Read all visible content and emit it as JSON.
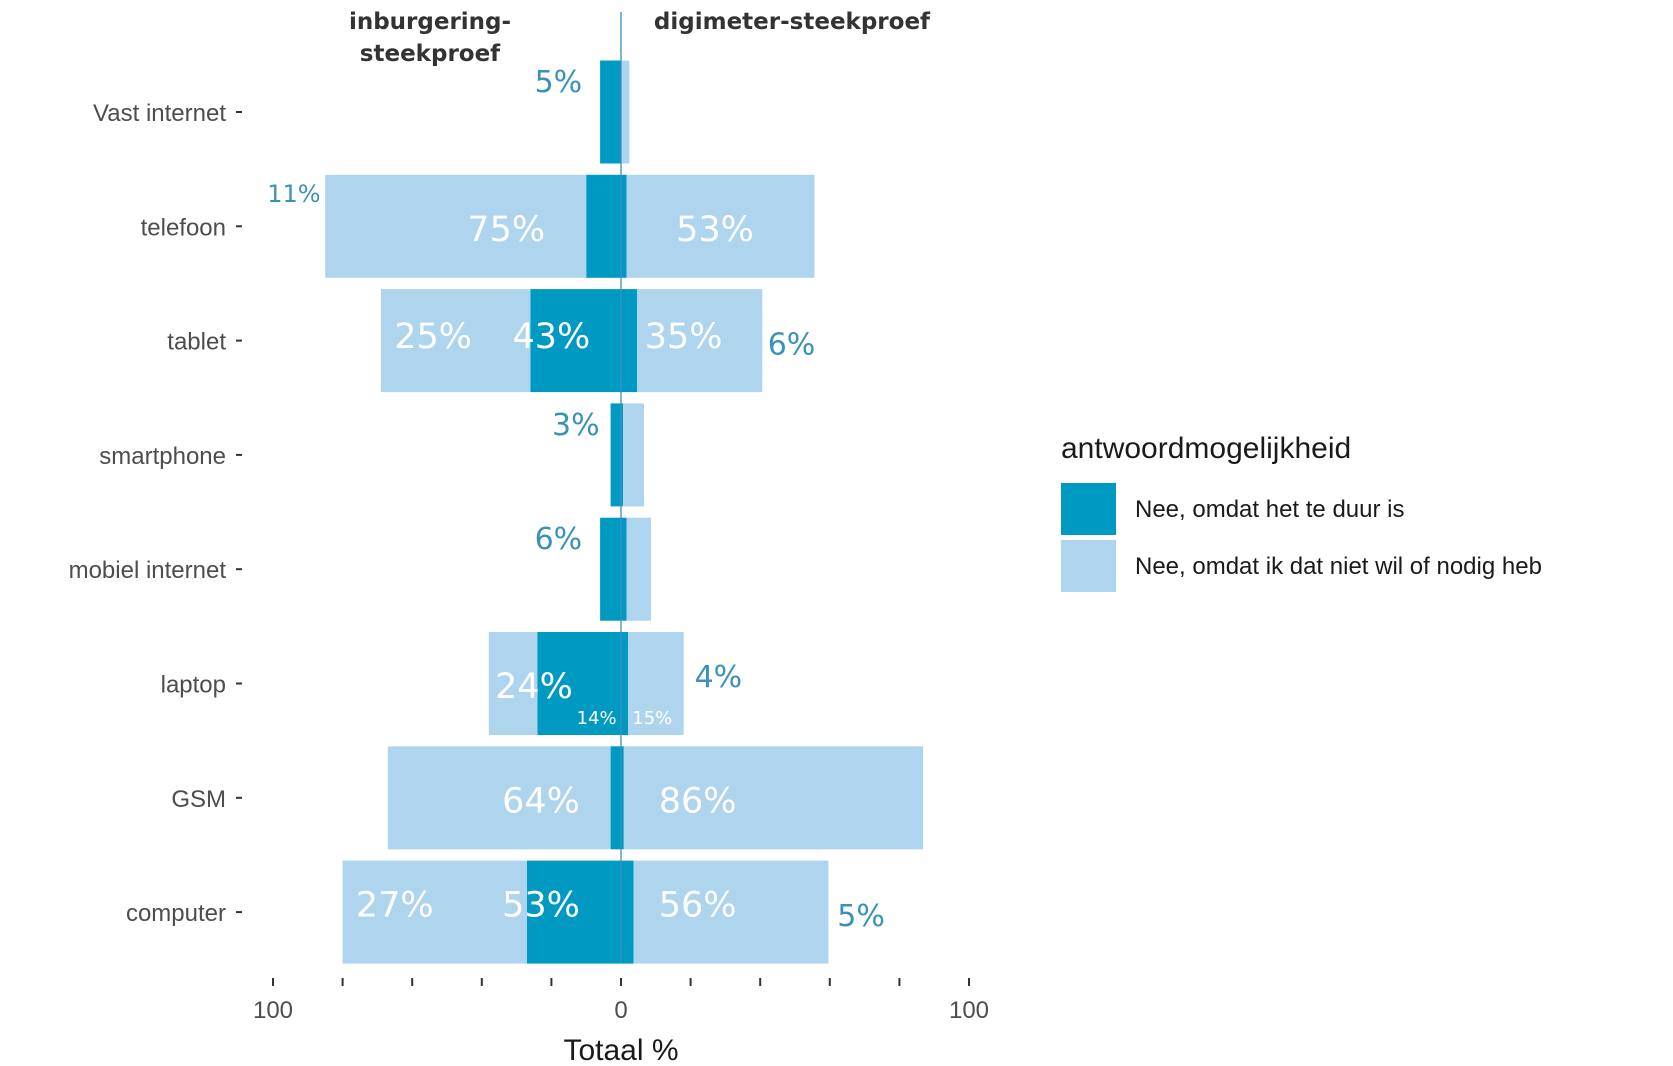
{
  "chart_data": {
    "type": "bar",
    "orientation": "horizontal-diverging",
    "categories": [
      "Vast internet",
      "telefoon",
      "tablet",
      "smartphone",
      "mobiel internet",
      "laptop",
      "GSM",
      "computer"
    ],
    "groups": [
      {
        "title": "inburgering-\nsteekproef",
        "side": "left",
        "series": [
          {
            "name": "Nee, omdat het te duur is",
            "values": [
              3,
              5,
              13,
              1.5,
              3,
              12,
              1.5,
              13.5
            ]
          },
          {
            "name": "Nee, omdat ik dat niet wil of nodig heb",
            "values": [
              0,
              37.5,
              21.5,
              0,
              0,
              7,
              32,
              26.5
            ]
          }
        ]
      },
      {
        "title": "digimeter-steekproef",
        "side": "right",
        "series": [
          {
            "name": "Nee, omdat het te duur is",
            "values": [
              0,
              0.8,
              2.3,
              0.3,
              0.8,
              1,
              0.4,
              1.8
            ]
          },
          {
            "name": "Nee, omdat ik dat niet wil of nodig heb",
            "values": [
              1.2,
              27,
              18,
              3,
              3.5,
              8,
              43,
              28
            ]
          }
        ]
      }
    ],
    "labels": [
      {
        "category": "Vast internet",
        "text": "5%",
        "style": "outside",
        "dx": -9,
        "dy": -0.3
      },
      {
        "category": "telefoon",
        "text": "11%",
        "style": "outside-small",
        "dx": -47,
        "dy": -0.32
      },
      {
        "category": "telefoon",
        "text": "75%",
        "style": "inside",
        "dx": -16.5,
        "dy": 0.02
      },
      {
        "category": "telefoon",
        "text": "53%",
        "style": "inside",
        "dx": 13.5,
        "dy": 0.02
      },
      {
        "category": "tablet",
        "text": "25%",
        "style": "inside",
        "dx": -27,
        "dy": -0.05
      },
      {
        "category": "tablet",
        "text": "43%",
        "style": "inside",
        "dx": -10,
        "dy": -0.05
      },
      {
        "category": "tablet",
        "text": "35%",
        "style": "inside",
        "dx": 9,
        "dy": -0.05
      },
      {
        "category": "tablet",
        "text": "6%",
        "style": "outside",
        "dx": 24.5,
        "dy": 0.03
      },
      {
        "category": "smartphone",
        "text": "3%",
        "style": "outside",
        "dx": -6.5,
        "dy": -0.3
      },
      {
        "category": "mobiel internet",
        "text": "6%",
        "style": "outside",
        "dx": -9,
        "dy": -0.3
      },
      {
        "category": "laptop",
        "text": "24%",
        "style": "inside",
        "dx": -12.5,
        "dy": 0.02
      },
      {
        "category": "laptop",
        "text": "14%",
        "style": "small",
        "dx": -3.5,
        "dy": 0.33
      },
      {
        "category": "laptop",
        "text": "15%",
        "style": "small",
        "dx": 4.5,
        "dy": 0.33
      },
      {
        "category": "laptop",
        "text": "4%",
        "style": "outside",
        "dx": 14,
        "dy": -0.07
      },
      {
        "category": "GSM",
        "text": "64%",
        "style": "inside",
        "dx": -11.5,
        "dy": 0.02
      },
      {
        "category": "GSM",
        "text": "86%",
        "style": "inside",
        "dx": 11,
        "dy": 0.02
      },
      {
        "category": "computer",
        "text": "27%",
        "style": "inside",
        "dx": -32.5,
        "dy": -0.08
      },
      {
        "category": "computer",
        "text": "53%",
        "style": "inside",
        "dx": -11.5,
        "dy": -0.08
      },
      {
        "category": "computer",
        "text": "56%",
        "style": "inside",
        "dx": 11,
        "dy": -0.08
      },
      {
        "category": "computer",
        "text": "5%",
        "style": "outside",
        "dx": 34.5,
        "dy": 0.03
      }
    ],
    "x_ticks": [
      {
        "value": -50,
        "label": "100"
      },
      {
        "value": 0,
        "label": "0"
      },
      {
        "value": 50,
        "label": "100"
      }
    ],
    "x_minor_ticks": [
      -40,
      -30,
      -20,
      -10,
      10,
      20,
      30,
      40
    ],
    "xlim": [
      -60,
      60
    ],
    "xlabel": "Totaal %",
    "ylabel": "",
    "grid": false,
    "legend": {
      "title": "antwoordmogelijkheid",
      "position": "right",
      "items": [
        {
          "label": "Nee, omdat het te duur is",
          "color": "#0099c2"
        },
        {
          "label": "Nee, omdat ik dat niet wil of nodig heb",
          "color": "#afd4ee"
        }
      ]
    },
    "colors": {
      "dark": "#0099c2",
      "light": "#afd4ee",
      "outside_label": "#3a92b9",
      "inside_label": "#ffffff",
      "zero_line": "#3f8fc4"
    }
  }
}
